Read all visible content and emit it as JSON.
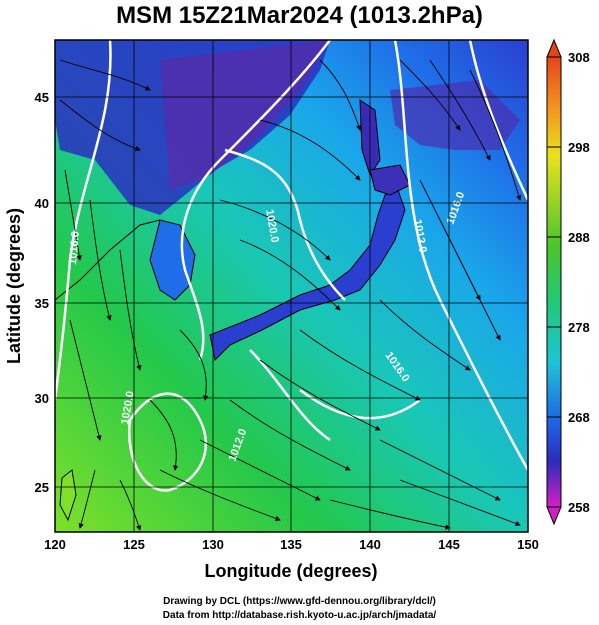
{
  "title": "MSM 15Z21Mar2024 (1013.2hPa)",
  "xaxis": {
    "label": "Longitude (degrees)",
    "ticks": [
      "120",
      "125",
      "130",
      "135",
      "140",
      "145",
      "150"
    ]
  },
  "yaxis": {
    "label": "Latitude  (degrees)",
    "ticks": [
      "25",
      "30",
      "35",
      "40",
      "45"
    ]
  },
  "colorbar": {
    "ticks": [
      "308",
      "298",
      "288",
      "278",
      "268",
      "258"
    ]
  },
  "contour_labels": [
    "1020.0",
    "1016.0",
    "1012.0",
    "1016.0",
    "1020.0",
    "1012.0",
    "1016.0"
  ],
  "credits": {
    "line1": "Drawing by DCL (https://www.gfd-dennou.org/library/dcl/)",
    "line2": "Data from http://database.rish.kyoto-u.ac.jp/arch/jmadata/"
  }
}
